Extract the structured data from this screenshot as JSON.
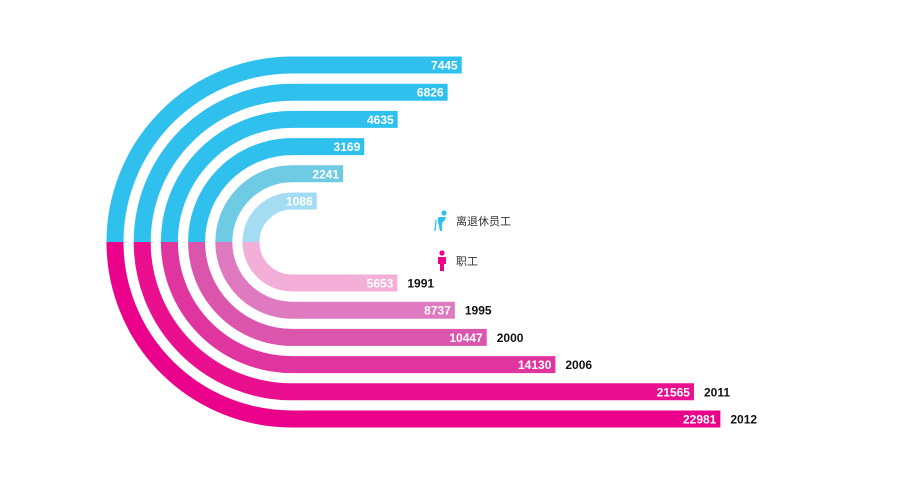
{
  "chart_data": {
    "type": "bar",
    "style": "radial semicircle bars (top half = retirees, bottom half = employees)",
    "categories": [
      "1991",
      "1995",
      "2000",
      "2006",
      "2011",
      "2012"
    ],
    "series": [
      {
        "name": "离退休员工",
        "values": [
          1086,
          2241,
          3169,
          4635,
          6826,
          7445
        ],
        "colors": [
          "#a4dcf4",
          "#6ecbe3",
          "#2fc0ee",
          "#2fc0ee",
          "#2fc0ee",
          "#2fc0ee"
        ]
      },
      {
        "name": "职工",
        "values": [
          5653,
          8737,
          10447,
          14130,
          21565,
          22981
        ],
        "colors": [
          "#f3afd7",
          "#e07ac0",
          "#dc55ad",
          "#e0359f",
          "#ea0f8e",
          "#ea008a"
        ]
      }
    ]
  },
  "legend": {
    "retiree_label": "离退休员工",
    "retiree_icon": "retiree-person-icon",
    "employee_label": "职工",
    "employee_icon": "employee-person-icon",
    "retiree_color": "#2fc0ee",
    "employee_color": "#ea008a"
  }
}
